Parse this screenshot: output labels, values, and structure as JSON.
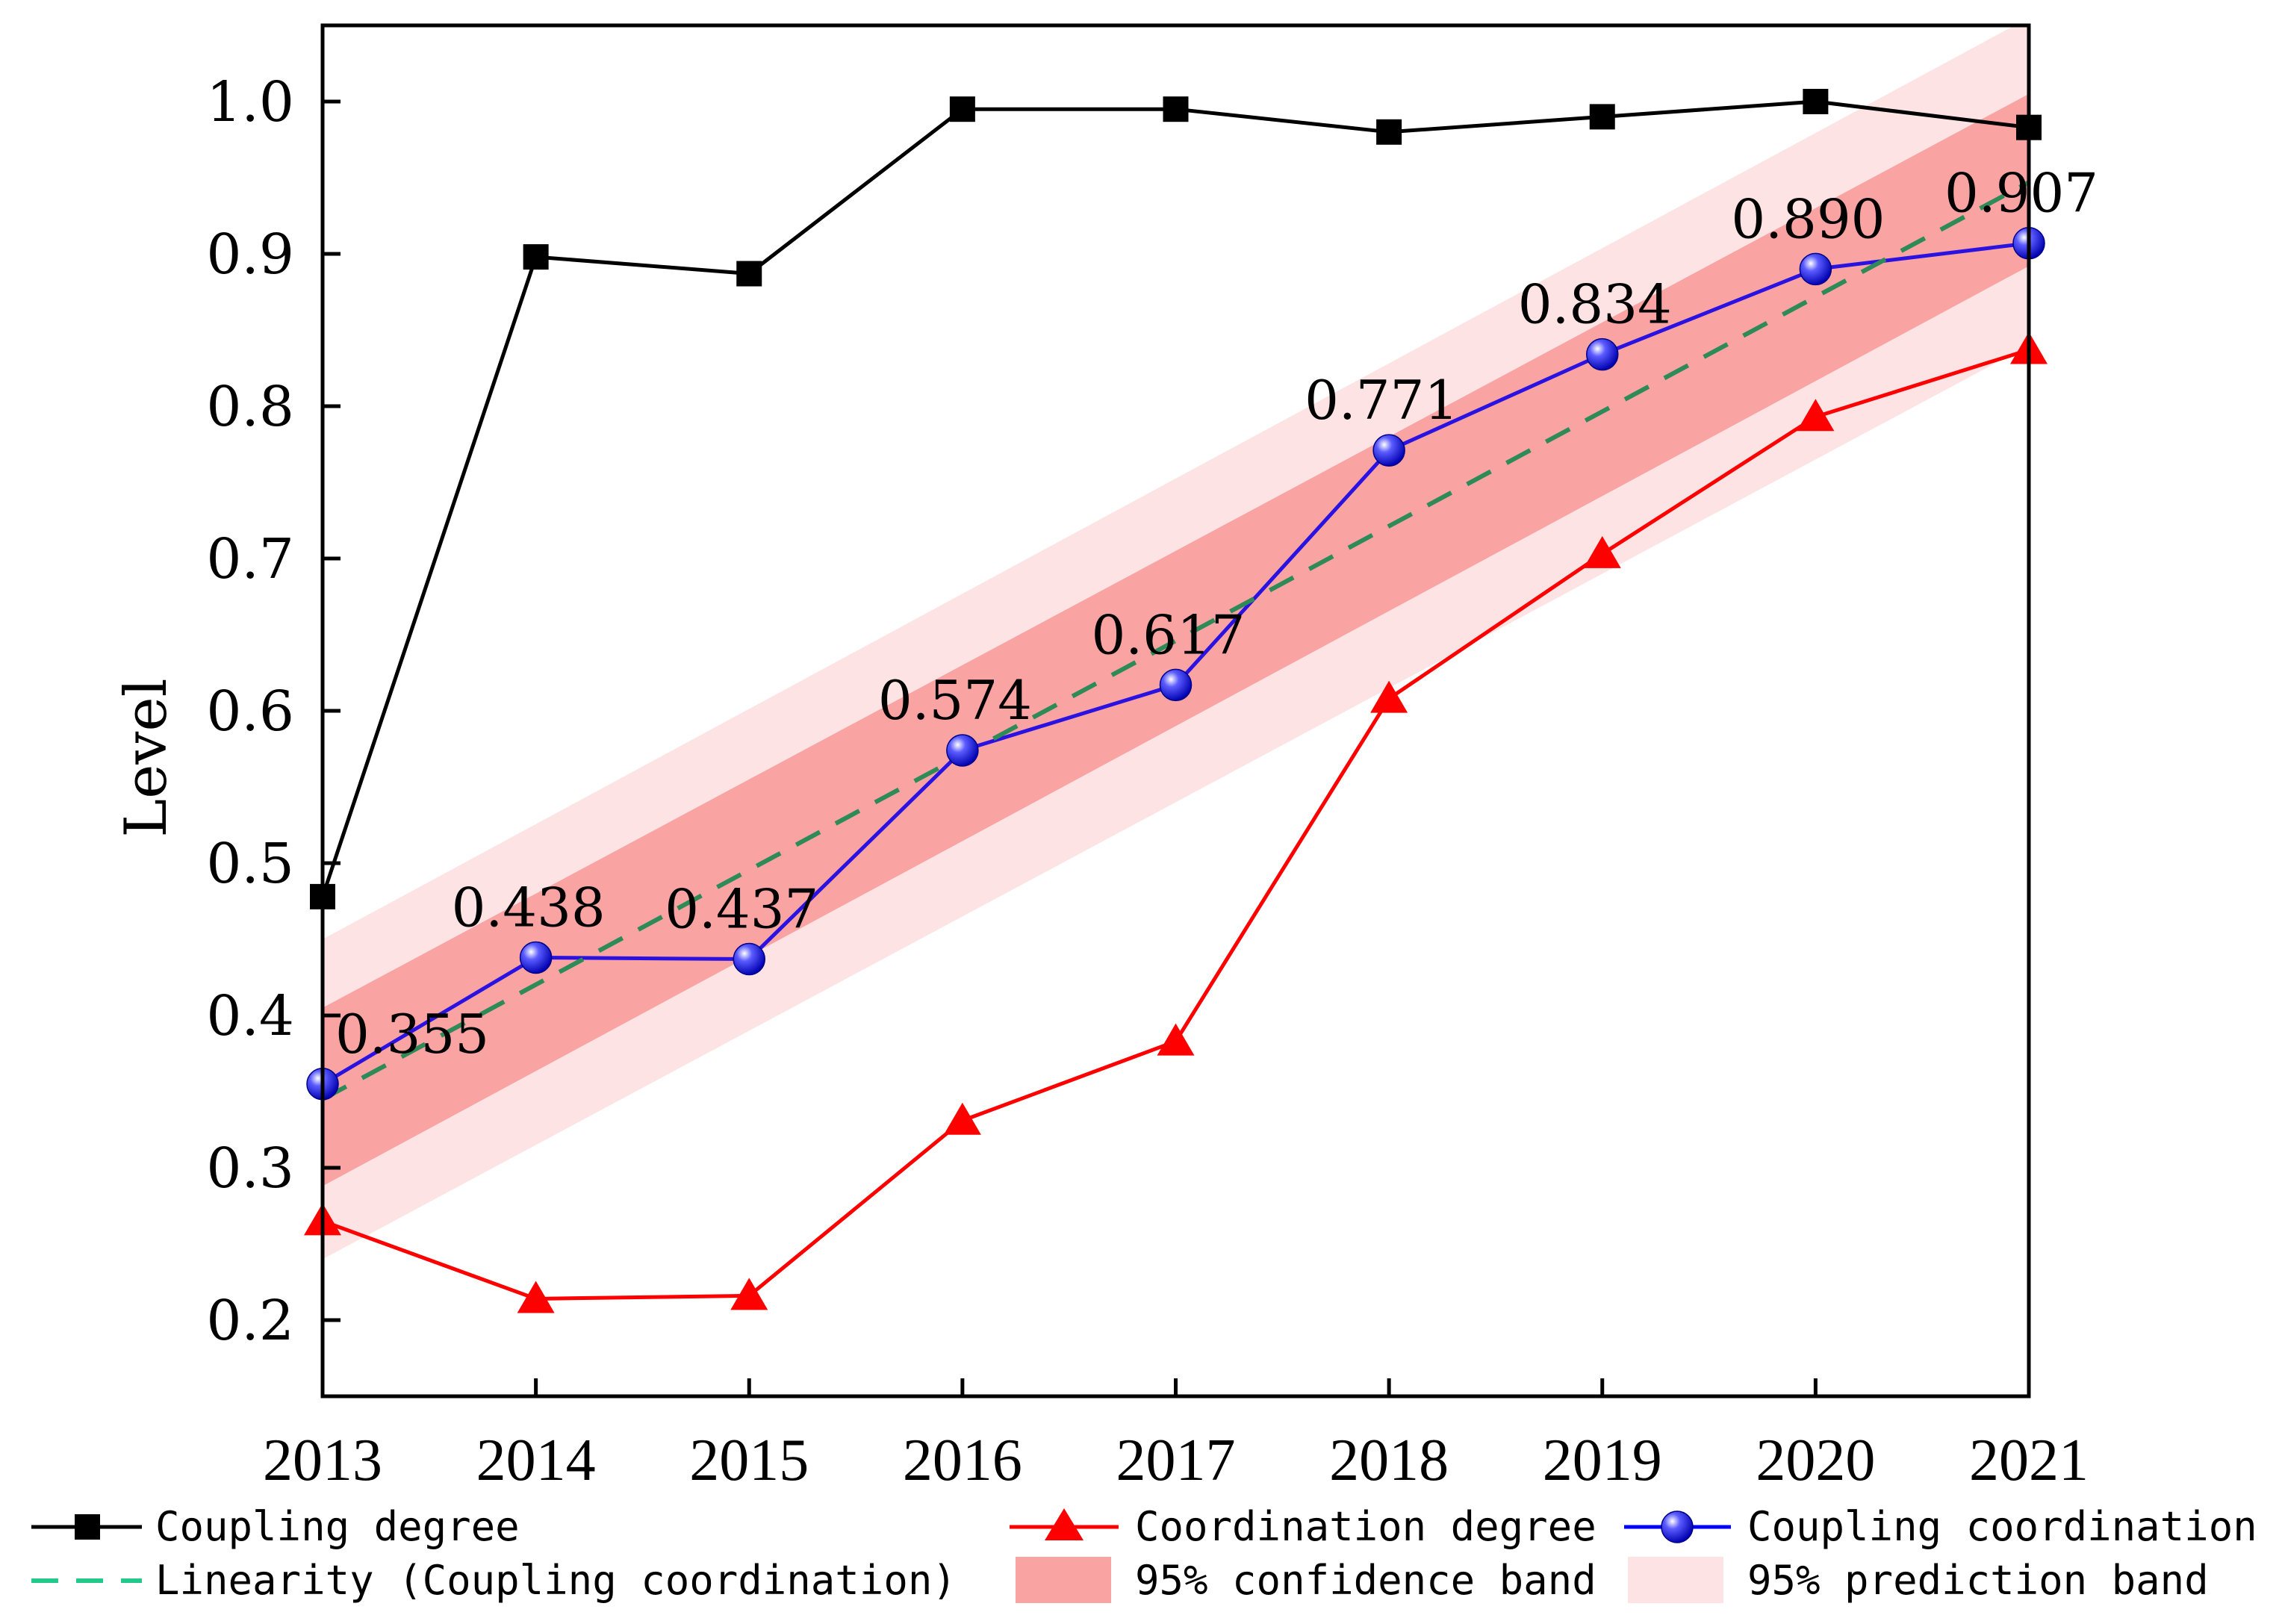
{
  "chart_data": {
    "type": "line",
    "title": "",
    "xlabel": "",
    "ylabel": "Level",
    "x": [
      2013,
      2014,
      2015,
      2016,
      2017,
      2018,
      2019,
      2020,
      2021
    ],
    "x_tick_labels": [
      "2013",
      "2014",
      "2015",
      "2016",
      "2017",
      "2018",
      "2019",
      "2020",
      "2021"
    ],
    "xlim": [
      2013,
      2021
    ],
    "ylim": [
      0.15,
      1.05
    ],
    "y_ticks": [
      0.2,
      0.3,
      0.4,
      0.5,
      0.6,
      0.7,
      0.8,
      0.9,
      1.0
    ],
    "y_tick_labels": [
      "0.2",
      "0.3",
      "0.4",
      "0.5",
      "0.6",
      "0.7",
      "0.8",
      "0.9",
      "1.0"
    ],
    "grid": false,
    "series": [
      {
        "name": "Coupling degree",
        "marker": "square",
        "color": "#000000",
        "values": [
          0.478,
          0.898,
          0.887,
          0.995,
          0.995,
          0.98,
          0.99,
          1.0,
          0.983
        ]
      },
      {
        "name": "Coordination degree",
        "marker": "triangle",
        "color": "#ff0000",
        "values": [
          0.265,
          0.214,
          0.216,
          0.331,
          0.383,
          0.608,
          0.703,
          0.793,
          0.837
        ]
      },
      {
        "name": "Coupling coordination",
        "marker": "sphere",
        "color": "#0000ff",
        "values": [
          0.355,
          0.438,
          0.437,
          0.574,
          0.617,
          0.771,
          0.834,
          0.89,
          0.907
        ],
        "data_labels": [
          "0.355",
          "0.438",
          "0.437",
          "0.574",
          "0.617",
          "0.771",
          "0.834",
          "0.890",
          "0.907"
        ]
      }
    ],
    "fit": {
      "name": "Linearity (Coupling coordination)",
      "color": "#2e8b57",
      "style": "dashed",
      "start": [
        2013,
        0.345
      ],
      "end": [
        2021,
        0.947
      ]
    },
    "confidence_band": {
      "name": "95% confidence band",
      "color": "#f9a3a3",
      "upper": [
        0.405,
        1.005
      ],
      "lower": [
        0.288,
        0.892
      ]
    },
    "prediction_band": {
      "name": "95% prediction band",
      "color": "#fde3e3",
      "upper": [
        0.45,
        1.055
      ],
      "lower": [
        0.24,
        0.84
      ]
    },
    "legend": {
      "placement": "bottom",
      "items": [
        "Coupling degree",
        "Coordination degree",
        "Coupling coordination",
        "Linearity (Coupling coordination)",
        "95% confidence band",
        "95% prediction band"
      ]
    }
  }
}
